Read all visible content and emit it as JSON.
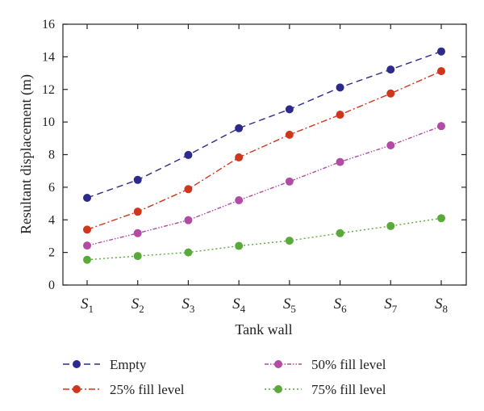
{
  "chart_data": {
    "type": "line",
    "xlabel": "Tank wall",
    "ylabel": "Resultant displacement (m)",
    "ylim": [
      0,
      16
    ],
    "yticks": [
      0,
      2,
      4,
      6,
      8,
      10,
      12,
      14,
      16
    ],
    "categories": [
      {
        "base": "S",
        "sub": "1"
      },
      {
        "base": "S",
        "sub": "2"
      },
      {
        "base": "S",
        "sub": "3"
      },
      {
        "base": "S",
        "sub": "4"
      },
      {
        "base": "S",
        "sub": "5"
      },
      {
        "base": "S",
        "sub": "6"
      },
      {
        "base": "S",
        "sub": "7"
      },
      {
        "base": "S",
        "sub": "8"
      }
    ],
    "grid": false,
    "legend_position": "bottom",
    "series": [
      {
        "name": "Empty",
        "color": "#2d2a8c",
        "dash": "8,5",
        "values": [
          5.35,
          6.45,
          7.98,
          9.62,
          10.78,
          12.12,
          13.22,
          14.33
        ]
      },
      {
        "name": "25% fill level",
        "color": "#d0361c",
        "dash": "8,3,2,3",
        "values": [
          3.4,
          4.5,
          5.88,
          7.83,
          9.22,
          10.45,
          11.75,
          13.12
        ]
      },
      {
        "name": "50% fill level",
        "color": "#b14ba4",
        "dash": "5,2,1.5,2,1.5,2",
        "values": [
          2.42,
          3.18,
          3.98,
          5.2,
          6.35,
          7.55,
          8.57,
          9.75
        ]
      },
      {
        "name": "75% fill level",
        "color": "#5aaa3a",
        "dash": "2,3",
        "values": [
          1.55,
          1.78,
          2.0,
          2.4,
          2.72,
          3.18,
          3.62,
          4.1
        ]
      }
    ]
  }
}
